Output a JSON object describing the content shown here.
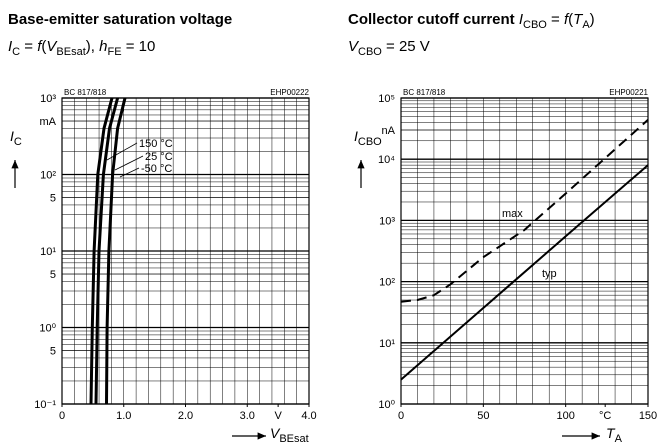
{
  "chart_data": [
    {
      "type": "line",
      "title": [
        "Base-emitter saturation voltage"
      ],
      "subtitle": [
        "I",
        "C",
        " = ",
        "f",
        "(",
        "V",
        "BEsat",
        "), ",
        "h",
        "FE",
        " = 10"
      ],
      "model": "BC 817/818",
      "code": "EHP00222",
      "xlabel": [
        "V",
        "BEsat"
      ],
      "ylabel": [
        "I",
        "C"
      ],
      "xlim": [
        0,
        4
      ],
      "xticks": [
        0,
        {
          "value": 1,
          "label": "1.0"
        },
        {
          "value": 2,
          "label": "2.0"
        },
        {
          "value": 3,
          "label": "3.0"
        },
        {
          "value": 3.5,
          "label": "V"
        },
        {
          "value": 4,
          "label": "4.0"
        }
      ],
      "ylim": [
        0.1,
        1000
      ],
      "yscale": "log",
      "yticks": [
        {
          "value": 1000,
          "label": "10³"
        },
        {
          "value": 500,
          "label": "mA"
        },
        {
          "value": 100,
          "label": "10²"
        },
        {
          "value": 50,
          "label": "5"
        },
        {
          "value": 10,
          "label": "10¹"
        },
        5,
        {
          "value": 1,
          "label": "10⁰"
        },
        {
          "value": 0.5,
          "label": "5"
        },
        {
          "value": 0.1,
          "label": "10⁻¹"
        }
      ],
      "grid": true,
      "series": [
        {
          "name": "150 °C",
          "color": "#000000",
          "x": [
            0.47,
            0.49,
            0.52,
            0.58,
            0.68,
            0.81
          ],
          "values": [
            0.1,
            1,
            10,
            100,
            400,
            1000
          ]
        },
        {
          "name": "25 °C",
          "color": "#000000",
          "x": [
            0.55,
            0.57,
            0.6,
            0.67,
            0.77,
            0.9
          ],
          "values": [
            0.1,
            1,
            10,
            100,
            400,
            1000
          ]
        },
        {
          "name": "-50 °C",
          "color": "#000000",
          "x": [
            0.72,
            0.73,
            0.76,
            0.82,
            0.9,
            1.02
          ],
          "values": [
            0.1,
            1,
            10,
            100,
            400,
            1000
          ]
        }
      ]
    },
    {
      "type": "line",
      "title": [
        "Collector cutoff current ",
        "I",
        "CBO",
        " = ",
        "f",
        "(",
        "T",
        "A",
        ")"
      ],
      "subtitle": [
        "V",
        "CBO",
        " = 25 V"
      ],
      "model": "BC 817/818",
      "code": "EHP00221",
      "xlabel": [
        "T",
        "A"
      ],
      "ylabel": [
        "I",
        "CBO"
      ],
      "xlim": [
        0,
        150
      ],
      "xticks": [
        0,
        50,
        100,
        {
          "value": 124,
          "label": "°C"
        },
        150
      ],
      "ylim": [
        1,
        100000
      ],
      "yscale": "log",
      "yticks": [
        {
          "value": 100000,
          "label": "10⁵"
        },
        {
          "value": 30000,
          "label": "nA"
        },
        {
          "value": 10000,
          "label": "10⁴"
        },
        {
          "value": 1000,
          "label": "10³"
        },
        {
          "value": 100,
          "label": "10²"
        },
        {
          "value": 10,
          "label": "10¹"
        },
        {
          "value": 1,
          "label": "10⁰"
        }
      ],
      "grid": true,
      "series": [
        {
          "name": "max",
          "color": "#000000",
          "dash": true,
          "x": [
            0,
            10,
            20,
            30,
            50,
            75,
            100,
            125,
            150
          ],
          "values": [
            47,
            50,
            60,
            90,
            250,
            700,
            2750,
            11000,
            44000
          ]
        },
        {
          "name": "typ",
          "color": "#000000",
          "dash": false,
          "x": [
            0,
            50,
            100,
            150
          ],
          "values": [
            2.5,
            37,
            550,
            8000
          ]
        }
      ]
    }
  ]
}
